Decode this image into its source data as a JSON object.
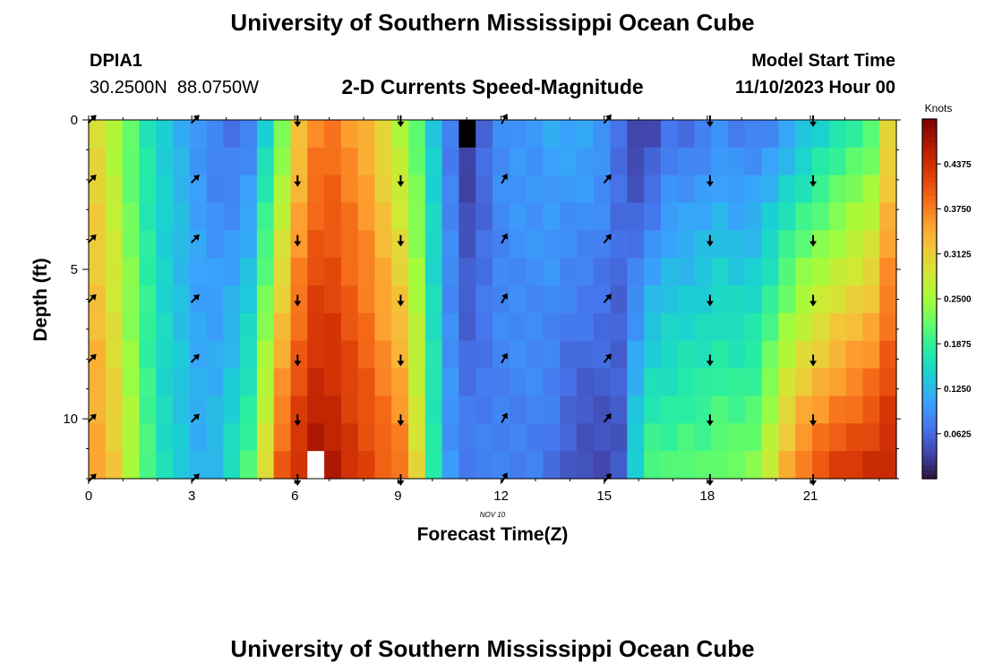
{
  "header": {
    "title": "University of Southern Mississippi Ocean Cube",
    "station_id": "DPIA1",
    "station_coords": "30.2500N  88.0750W",
    "subtitle": "2-D Currents Speed-Magnitude",
    "model_start_label": "Model Start Time",
    "model_start_value": "11/10/2023 Hour 00"
  },
  "footer": {
    "title_repeat": "University of Southern Mississippi Ocean Cube"
  },
  "colors": {
    "scale": [
      "#30123b",
      "#4145ab",
      "#4675ed",
      "#39a2fc",
      "#1bcfd4",
      "#24eca6",
      "#61fc6c",
      "#a4fc3b",
      "#d1e834",
      "#f3c63a",
      "#fe9b2d",
      "#f36315",
      "#d93806",
      "#b11901",
      "#7a0403"
    ],
    "missing_dark": "#000000",
    "missing_light": "#ffffff",
    "arrow": "#000000"
  },
  "chart_data": {
    "type": "heatmap",
    "title": "2-D Currents Speed-Magnitude",
    "xlabel": "Forecast Time(Z)",
    "ylabel": "Depth (ft)",
    "x_date_label": "NOV 10",
    "xlim": [
      0,
      23.5
    ],
    "ylim": [
      0,
      12
    ],
    "x_ticks": [
      0,
      3,
      6,
      9,
      12,
      15,
      18,
      21
    ],
    "y_ticks": [
      0,
      5,
      10
    ],
    "colorbar": {
      "label": "Knots",
      "range": [
        0.0,
        0.5
      ],
      "ticks": [
        0.0625,
        0.125,
        0.1875,
        0.25,
        0.3125,
        0.375,
        0.4375
      ],
      "tick_labels": [
        "0.0625",
        "0.1250",
        "0.1875",
        "0.2500",
        "0.3125",
        "0.3750",
        "0.4375"
      ]
    },
    "hours": [
      0,
      0.5,
      1,
      1.5,
      2,
      2.5,
      3,
      3.5,
      4,
      4.5,
      5,
      5.5,
      6,
      6.5,
      7,
      7.5,
      8,
      8.5,
      9,
      9.5,
      10,
      10.5,
      11,
      11.5,
      12,
      12.5,
      13,
      13.5,
      14,
      14.5,
      15,
      15.5,
      16,
      16.5,
      17,
      17.5,
      18,
      18.5,
      19,
      19.5,
      20,
      20.5,
      21,
      21.5,
      22,
      22.5,
      23,
      23.5
    ],
    "depths_ft": [
      0,
      1,
      2,
      3,
      4,
      5,
      6,
      7,
      8,
      9,
      10,
      11,
      12
    ],
    "surface_profile_knots": [
      0.3,
      0.26,
      0.21,
      0.17,
      0.14,
      0.12,
      0.1,
      0.08,
      0.07,
      0.08,
      0.15,
      0.23,
      0.32,
      0.37,
      0.38,
      0.36,
      0.34,
      0.3,
      0.26,
      0.21,
      0.14,
      0.08,
      0.03,
      0.06,
      0.09,
      0.1,
      0.1,
      0.11,
      0.11,
      0.11,
      0.1,
      0.07,
      0.03,
      0.04,
      0.07,
      0.07,
      0.08,
      0.09,
      0.08,
      0.08,
      0.09,
      0.11,
      0.13,
      0.15,
      0.17,
      0.19,
      0.21,
      0.3
    ],
    "bottom_profile_knots": [
      0.35,
      0.32,
      0.26,
      0.2,
      0.16,
      0.14,
      0.12,
      0.13,
      0.16,
      0.2,
      0.3,
      0.4,
      0.44,
      0.47,
      0.46,
      0.44,
      0.42,
      0.4,
      0.38,
      0.3,
      0.18,
      0.1,
      0.08,
      0.08,
      0.08,
      0.08,
      0.08,
      0.07,
      0.05,
      0.04,
      0.04,
      0.05,
      0.15,
      0.2,
      0.2,
      0.21,
      0.21,
      0.22,
      0.22,
      0.23,
      0.28,
      0.34,
      0.38,
      0.4,
      0.42,
      0.43,
      0.44,
      0.45
    ],
    "missing_cells": [
      {
        "hour": 11,
        "depth_ft": 0,
        "shade": "dark"
      },
      {
        "hour": 6.5,
        "depth_ft": 12,
        "shade": "light"
      }
    ],
    "vector_hours": [
      0,
      3,
      6,
      9,
      12,
      15,
      18,
      21
    ],
    "vector_depths_ft": [
      0,
      2,
      4,
      6,
      8,
      10,
      12
    ],
    "vector_directions_deg_from_north": [
      45,
      45,
      180,
      180,
      30,
      40,
      180,
      180
    ]
  }
}
